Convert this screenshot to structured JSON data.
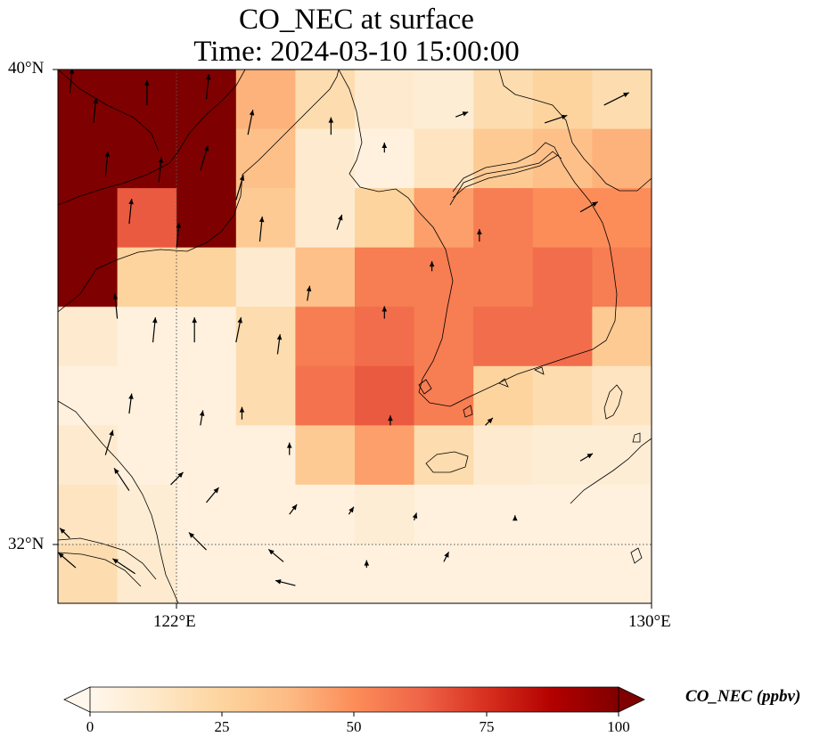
{
  "title": {
    "line1": "CO_NEC at surface",
    "line2": "Time: 2024-03-10 15:00:00"
  },
  "axes": {
    "lat_labels": [
      "40°N",
      "32°N"
    ],
    "lon_labels": [
      "122°E",
      "130°E"
    ],
    "lat_range": [
      31,
      40
    ],
    "lon_range": [
      120,
      130
    ],
    "gridlines": "dotted at 122°E and 32°N"
  },
  "colorbar": {
    "label": "CO_NEC (ppbv)",
    "ticks": [
      "0",
      "25",
      "50",
      "75",
      "100"
    ],
    "min": 0,
    "max": 100,
    "extend": "both",
    "colormap": "OrRd",
    "stops": [
      "#fff7ec",
      "#fee8c8",
      "#fdd49e",
      "#fdbb84",
      "#fc8d59",
      "#ef6548",
      "#d7301f",
      "#b30000",
      "#7f0000"
    ]
  },
  "chart_data": {
    "type": "heatmap",
    "variable": "CO_NEC",
    "level": "surface",
    "units": "ppbv",
    "grid": {
      "lon": [
        120.5,
        121.5,
        122.5,
        123.5,
        124.5,
        125.5,
        126.5,
        127.5,
        128.5,
        129.5
      ],
      "lat": [
        39.5,
        38.5,
        37.5,
        36.5,
        35.5,
        34.5,
        33.5,
        32.5,
        31.5
      ],
      "values": [
        [
          100,
          100,
          100,
          40,
          20,
          10,
          8,
          20,
          25,
          20
        ],
        [
          100,
          100,
          100,
          35,
          10,
          5,
          15,
          30,
          35,
          40
        ],
        [
          100,
          65,
          100,
          30,
          10,
          25,
          45,
          55,
          50,
          50
        ],
        [
          100,
          25,
          25,
          10,
          35,
          55,
          55,
          55,
          60,
          55
        ],
        [
          10,
          5,
          5,
          20,
          55,
          60,
          55,
          60,
          60,
          30
        ],
        [
          5,
          5,
          5,
          20,
          58,
          65,
          55,
          25,
          20,
          15
        ],
        [
          10,
          5,
          5,
          5,
          30,
          45,
          20,
          10,
          8,
          8
        ],
        [
          15,
          8,
          5,
          5,
          5,
          8,
          5,
          5,
          5,
          5
        ],
        [
          20,
          10,
          5,
          5,
          5,
          5,
          5,
          5,
          5,
          5
        ]
      ]
    },
    "wind_vectors": [
      [
        120.2,
        39.6,
        0.1,
        1.0
      ],
      [
        120.6,
        39.1,
        0.1,
        1.0
      ],
      [
        121.5,
        39.4,
        0.0,
        1.0
      ],
      [
        122.5,
        39.5,
        0.1,
        1.0
      ],
      [
        123.2,
        38.9,
        0.2,
        1.0
      ],
      [
        120.8,
        38.2,
        0.1,
        1.0
      ],
      [
        121.7,
        38.1,
        0.1,
        1.0
      ],
      [
        122.4,
        38.3,
        0.3,
        1.0
      ],
      [
        123.0,
        37.8,
        0.3,
        1.0
      ],
      [
        121.2,
        37.4,
        0.1,
        1.0
      ],
      [
        122.0,
        37.0,
        0.1,
        1.0
      ],
      [
        123.4,
        37.1,
        0.1,
        1.0
      ],
      [
        124.7,
        37.3,
        0.2,
        0.6
      ],
      [
        126.3,
        36.6,
        0.0,
        0.4
      ],
      [
        127.1,
        37.1,
        0.0,
        0.5
      ],
      [
        128.8,
        37.6,
        0.7,
        0.4
      ],
      [
        129.2,
        39.4,
        1.0,
        0.5
      ],
      [
        128.2,
        39.1,
        0.9,
        0.3
      ],
      [
        126.7,
        39.2,
        0.5,
        0.2
      ],
      [
        125.5,
        38.6,
        0.0,
        0.4
      ],
      [
        124.6,
        38.9,
        0.0,
        0.7
      ],
      [
        121.0,
        35.8,
        -0.1,
        1.0
      ],
      [
        121.6,
        35.4,
        0.1,
        1.0
      ],
      [
        122.3,
        35.4,
        0.0,
        1.0
      ],
      [
        123.0,
        35.4,
        0.2,
        1.0
      ],
      [
        123.7,
        35.2,
        0.1,
        0.8
      ],
      [
        124.2,
        36.1,
        0.1,
        0.6
      ],
      [
        125.5,
        35.8,
        0.0,
        0.5
      ],
      [
        121.2,
        34.2,
        0.1,
        0.8
      ],
      [
        122.4,
        34.0,
        0.1,
        0.6
      ],
      [
        123.1,
        34.1,
        0.0,
        0.5
      ],
      [
        123.9,
        33.5,
        0.0,
        0.5
      ],
      [
        125.6,
        34.0,
        0.0,
        0.4
      ],
      [
        127.2,
        34.0,
        0.3,
        0.3
      ],
      [
        128.8,
        33.4,
        0.5,
        0.3
      ],
      [
        120.8,
        33.5,
        0.3,
        1.0
      ],
      [
        121.9,
        33.0,
        0.5,
        0.5
      ],
      [
        122.5,
        32.7,
        0.5,
        0.6
      ],
      [
        123.9,
        32.5,
        0.3,
        0.4
      ],
      [
        124.9,
        32.5,
        0.2,
        0.3
      ],
      [
        126.0,
        32.4,
        0.1,
        0.3
      ],
      [
        127.7,
        32.4,
        0.0,
        0.2
      ],
      [
        121.2,
        32.9,
        -0.6,
        0.9
      ],
      [
        120.2,
        32.1,
        -0.4,
        0.4
      ],
      [
        121.3,
        31.5,
        -0.9,
        0.6
      ],
      [
        122.5,
        31.9,
        -0.7,
        0.7
      ],
      [
        123.8,
        31.7,
        -0.6,
        0.5
      ],
      [
        125.2,
        31.6,
        0.0,
        0.3
      ],
      [
        126.5,
        31.7,
        0.2,
        0.4
      ],
      [
        120.3,
        31.6,
        -0.7,
        0.6
      ],
      [
        124.0,
        31.3,
        -0.8,
        0.2
      ]
    ]
  },
  "legend": {
    "position": "bottom colorbar"
  }
}
